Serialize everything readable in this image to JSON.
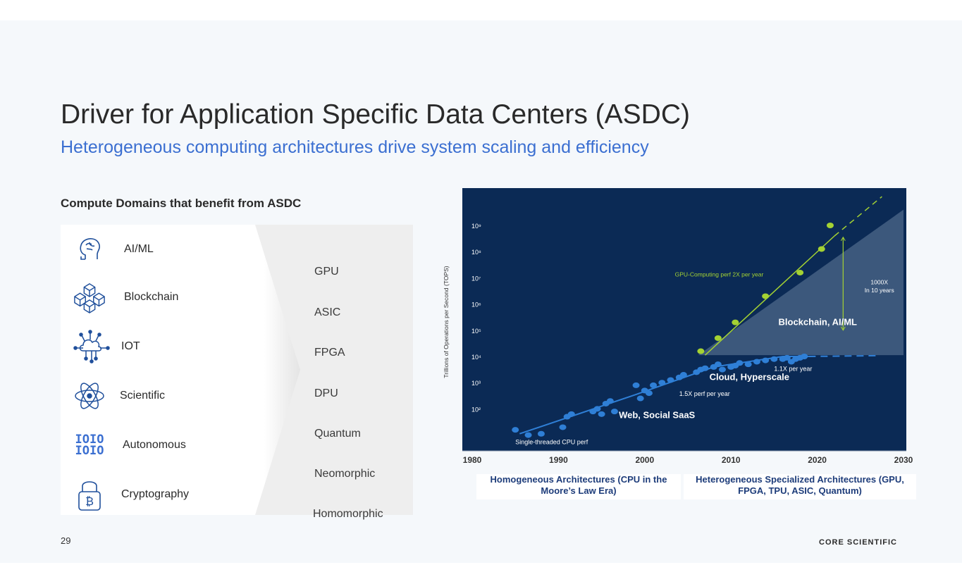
{
  "title": "Driver for Application Specific Data Centers (ASDC)",
  "subtitle": "Heterogeneous computing architectures drive system scaling and efficiency",
  "section_label": "Compute Domains that benefit from ASDC",
  "domains": [
    {
      "label": "AI/ML",
      "icon": "brain-icon"
    },
    {
      "label": "Blockchain",
      "icon": "cubes-icon"
    },
    {
      "label": "IOT",
      "icon": "cloud-network-icon"
    },
    {
      "label": "Scientific",
      "icon": "atom-icon"
    },
    {
      "label": "Autonomous",
      "icon": "binary-icon"
    },
    {
      "label": "Cryptography",
      "icon": "bitcoin-lock-icon"
    }
  ],
  "technologies": [
    "GPU",
    "ASIC",
    "FPGA",
    "DPU",
    "Quantum",
    "Neomorphic",
    "Homomorphic"
  ],
  "binary_text": [
    "IOIO",
    "IOIO"
  ],
  "page_number": "29",
  "brand": "CORE SCIENTIFIC",
  "colors": {
    "accent_blue": "#3b6fd1",
    "chart_bg": "#0b2a55",
    "chart_point": "#2f7fd6",
    "gpu_green": "#a4d233",
    "triangle": "#3f5b7e"
  },
  "chart_data": {
    "type": "scatter",
    "ylabel": "Trillions of Operations per Second (TOPS)",
    "xlabel": "",
    "xlim": [
      1980,
      2030
    ],
    "ylim_exponent": [
      1,
      9.6
    ],
    "y_scale": "log",
    "x_ticks": [
      "1980",
      "1990",
      "2000",
      "2010",
      "2020",
      "2030"
    ],
    "y_ticks": [
      "10²",
      "10³",
      "10⁴",
      "10⁵",
      "10⁶",
      "10⁷",
      "10⁸",
      "10⁹"
    ],
    "series": [
      {
        "name": "",
        "points": [
          [
            1985,
            1.2
          ],
          [
            1986.5,
            1.0
          ],
          [
            1988,
            1.05
          ],
          [
            1990.5,
            1.3
          ],
          [
            1991,
            1.7
          ],
          [
            1991.5,
            1.8
          ],
          [
            1994,
            1.9
          ],
          [
            1994.5,
            2.0
          ],
          [
            1995,
            1.8
          ],
          [
            1995.5,
            2.2
          ],
          [
            1996,
            2.3
          ],
          [
            1996.5,
            1.9
          ],
          [
            1999,
            2.9
          ],
          [
            1999.5,
            2.4
          ],
          [
            2000,
            2.7
          ],
          [
            2000.5,
            2.6
          ],
          [
            2001,
            2.9
          ],
          [
            2002,
            3.0
          ],
          [
            2003,
            3.1
          ],
          [
            2004,
            3.2
          ],
          [
            2004.5,
            3.3
          ],
          [
            2006,
            3.4
          ],
          [
            2006.5,
            3.5
          ],
          [
            2007,
            3.55
          ],
          [
            2008,
            3.6
          ],
          [
            2008.5,
            3.7
          ],
          [
            2009,
            3.5
          ],
          [
            2010,
            3.6
          ],
          [
            2010.5,
            3.65
          ],
          [
            2011,
            3.75
          ],
          [
            2012,
            3.7
          ],
          [
            2013,
            3.8
          ],
          [
            2014,
            3.85
          ],
          [
            2015,
            3.9
          ],
          [
            2016,
            3.9
          ],
          [
            2016.5,
            3.95
          ],
          [
            2017,
            3.8
          ],
          [
            2017.5,
            3.9
          ],
          [
            2018,
            3.95
          ],
          [
            2018.5,
            4.0
          ]
        ]
      },
      {
        "name": "",
        "points": [
          [
            2006.5,
            4.2
          ],
          [
            2008.5,
            4.7
          ],
          [
            2010.5,
            5.3
          ],
          [
            2014,
            6.3
          ],
          [
            2018,
            7.2
          ],
          [
            2020.5,
            8.1
          ],
          [
            2021.5,
            9.0
          ]
        ]
      }
    ],
    "annotations": {
      "cpu_trend": "Single-threaded CPU perf",
      "web_rate": "1.5X perf per year",
      "web_label": "Web, Social SaaS",
      "cloud_rate": "1.1X per year",
      "cloud_label": "Cloud, Hyperscale",
      "gpu_rate": "GPU-Computing perf   2X per year",
      "blockchain_label": "Blockchain, AI/ML",
      "gain_line1": "1000X",
      "gain_line2": "In 10 years"
    },
    "eras": [
      "Homogeneous Architectures (CPU in the Moore’s Law Era)",
      "Heterogeneous Specialized Architectures (GPU, FPGA, TPU, ASIC, Quantum)"
    ]
  }
}
